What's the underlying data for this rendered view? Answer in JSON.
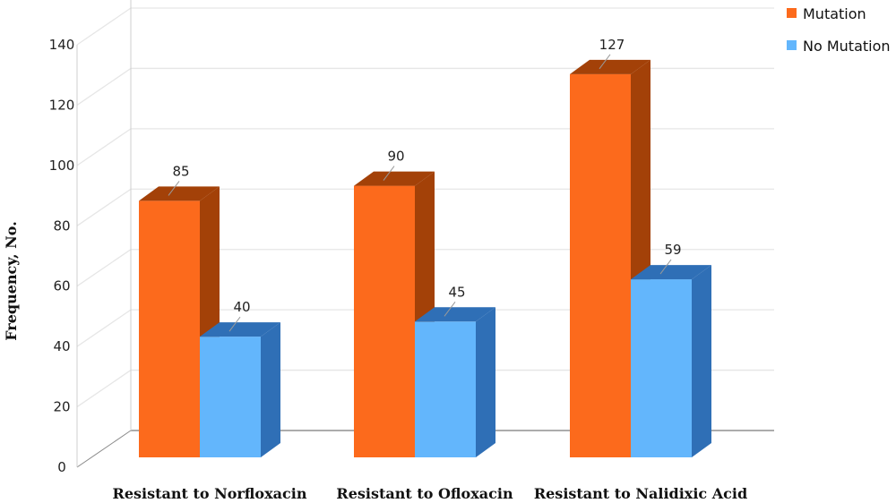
{
  "chart_data": {
    "type": "bar",
    "style": "3d-clustered",
    "categories": [
      "Resistant to Norfloxacin",
      "Resistant to Ofloxacin",
      "Resistant to Nalidixic Acid"
    ],
    "series": [
      {
        "name": "Mutation",
        "values": [
          85,
          90,
          127
        ],
        "color": "#fc6a1c",
        "side_color": "#a34108"
      },
      {
        "name": "No Mutation",
        "values": [
          40,
          45,
          59
        ],
        "color": "#63b6fc",
        "side_color": "#2f6fb6"
      }
    ],
    "title": "",
    "xlabel": "",
    "ylabel": "Frequency, No.",
    "ylim": [
      0,
      140
    ],
    "yticks": [
      0,
      20,
      40,
      60,
      80,
      100,
      120,
      140
    ],
    "grid": true,
    "legend": "top-right",
    "colors": {
      "grid": "#e6e6e6",
      "floor_line": "#7a7a7a",
      "leader": "#999999"
    }
  }
}
